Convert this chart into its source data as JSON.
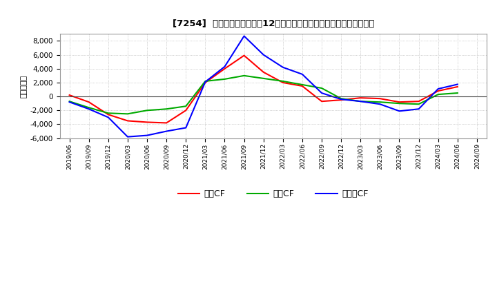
{
  "title": "[7254]  キャッシュフローの12か月移動合計の対前年同期増減額の推移",
  "ylabel": "（百万円）",
  "x_labels": [
    "2019/06",
    "2019/09",
    "2019/12",
    "2020/03",
    "2020/06",
    "2020/09",
    "2020/12",
    "2021/03",
    "2021/06",
    "2021/09",
    "2021/12",
    "2022/03",
    "2022/06",
    "2022/09",
    "2022/12",
    "2023/03",
    "2023/06",
    "2023/09",
    "2023/12",
    "2024/03",
    "2024/06",
    "2024/09"
  ],
  "operating_cf": [
    200,
    -800,
    -2600,
    -3500,
    -3700,
    -3800,
    -2000,
    2000,
    4000,
    5900,
    3500,
    2000,
    1500,
    -700,
    -500,
    -200,
    -300,
    -800,
    -700,
    800,
    1400,
    null
  ],
  "investing_cf": [
    -700,
    -1600,
    -2400,
    -2500,
    -2000,
    -1800,
    -1400,
    2200,
    2500,
    3000,
    2600,
    2200,
    1700,
    1200,
    -300,
    -700,
    -800,
    -1000,
    -1100,
    300,
    500,
    null
  ],
  "free_cf": [
    -800,
    -1800,
    -3000,
    -5800,
    -5600,
    -5000,
    -4500,
    2100,
    4300,
    8700,
    6000,
    4200,
    3200,
    500,
    -400,
    -700,
    -1100,
    -2100,
    -1800,
    1100,
    1750,
    null
  ],
  "operating_color": "#ff0000",
  "investing_color": "#00aa00",
  "free_color": "#0000ff",
  "ylim": [
    -6000,
    9000
  ],
  "yticks": [
    -6000,
    -4000,
    -2000,
    0,
    2000,
    4000,
    6000,
    8000
  ],
  "legend_labels": [
    "営業CF",
    "投資CF",
    "フリーCF"
  ],
  "bg_color": "#ffffff",
  "plot_bg_color": "#ffffff",
  "grid_color": "#aaaaaa"
}
